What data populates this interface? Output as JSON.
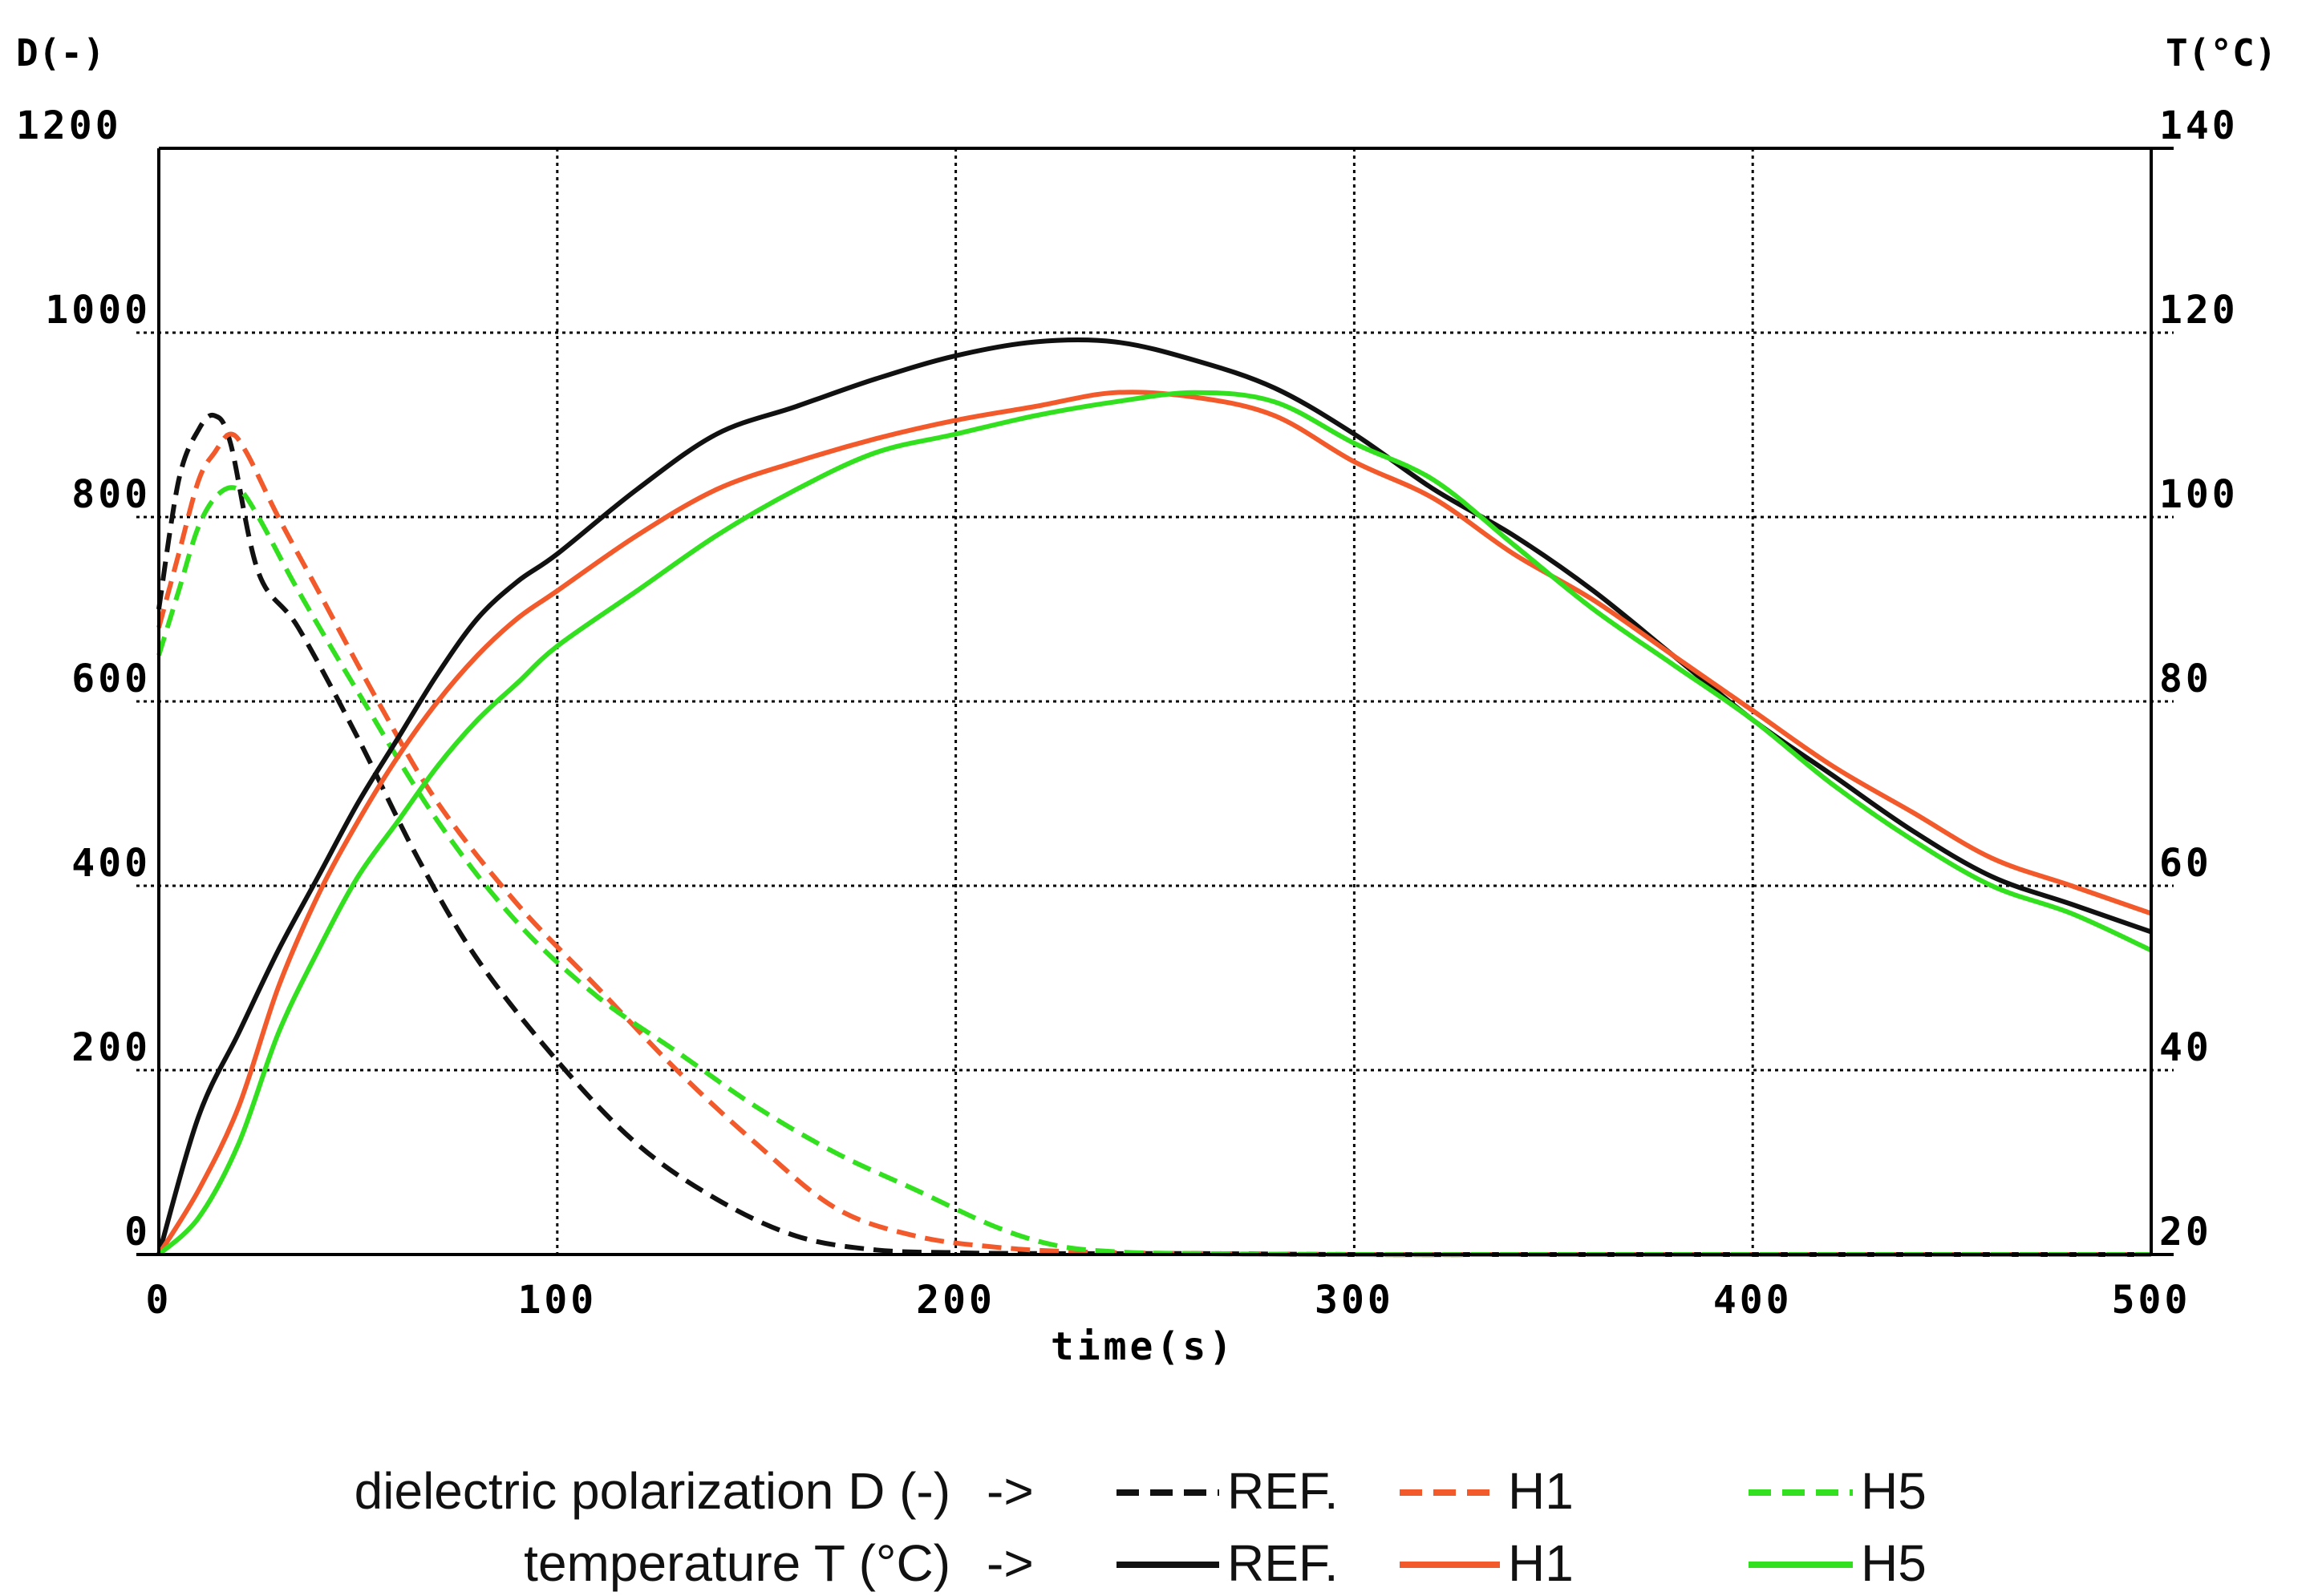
{
  "chart_data": {
    "type": "line",
    "title": "",
    "xlabel": "time(s)",
    "ylabel_left": "D(-)",
    "ylabel_right": "T(°C)",
    "xlim": [
      0,
      500
    ],
    "ylim_left": [
      0,
      1200
    ],
    "ylim_right": [
      20,
      140
    ],
    "x_ticks": [
      0,
      100,
      200,
      300,
      400,
      500
    ],
    "y_left_ticks": [
      0,
      200,
      400,
      600,
      800,
      1000,
      1200
    ],
    "y_right_ticks": [
      20,
      40,
      60,
      80,
      100,
      120,
      140
    ],
    "grid": true,
    "legend_position": "bottom-center",
    "legend": {
      "rows": [
        {
          "label": "dielectric polarization D (-)",
          "arrow": "->",
          "style": "dashed"
        },
        {
          "label": "temperature T (°C)",
          "arrow": "->",
          "style": "solid"
        }
      ],
      "entries": [
        "REF.",
        "H1",
        "H5"
      ]
    },
    "colors": {
      "REF.": "#111111",
      "H1": "#f25a2c",
      "H5": "#33e01f"
    },
    "series": [
      {
        "name": "REF.",
        "quantity": "D",
        "axis": "left",
        "style": "dashed",
        "x": [
          0,
          5,
          10,
          14,
          18,
          25,
          35,
          50,
          65,
          80,
          100,
          120,
          140,
          160,
          180,
          200,
          220,
          260,
          300,
          350,
          400,
          450,
          500
        ],
        "values": [
          700,
          840,
          895,
          910,
          880,
          740,
          680,
          560,
          430,
          320,
          210,
          120,
          60,
          20,
          5,
          2,
          1,
          1,
          0,
          0,
          0,
          0,
          0
        ]
      },
      {
        "name": "H1",
        "quantity": "D",
        "axis": "left",
        "style": "dashed",
        "x": [
          0,
          5,
          10,
          14,
          18,
          22,
          30,
          40,
          55,
          70,
          90,
          110,
          130,
          150,
          170,
          190,
          210,
          230,
          260,
          300,
          350,
          400,
          450,
          500
        ],
        "values": [
          680,
          760,
          840,
          870,
          890,
          870,
          800,
          720,
          600,
          490,
          380,
          290,
          200,
          120,
          50,
          20,
          8,
          3,
          1,
          0,
          0,
          0,
          0,
          0
        ]
      },
      {
        "name": "H5",
        "quantity": "D",
        "axis": "left",
        "style": "dashed",
        "x": [
          0,
          5,
          10,
          15,
          20,
          25,
          35,
          50,
          70,
          90,
          110,
          130,
          150,
          170,
          190,
          210,
          225,
          240,
          260,
          300,
          350,
          400,
          450,
          500
        ],
        "values": [
          650,
          720,
          790,
          825,
          830,
          800,
          720,
          610,
          470,
          360,
          280,
          220,
          160,
          110,
          70,
          30,
          10,
          3,
          1,
          0,
          0,
          0,
          0,
          0
        ]
      },
      {
        "name": "REF.",
        "quantity": "T",
        "axis": "right",
        "style": "solid",
        "x": [
          0,
          10,
          20,
          30,
          40,
          50,
          60,
          70,
          80,
          90,
          100,
          120,
          140,
          160,
          180,
          200,
          220,
          240,
          260,
          280,
          300,
          320,
          340,
          360,
          380,
          400,
          420,
          440,
          460,
          480,
          500
        ],
        "values": [
          20,
          35,
          44,
          53,
          61,
          69,
          76,
          83,
          89,
          93,
          96,
          103,
          109,
          112,
          115,
          117.5,
          119,
          119,
          117,
          114,
          109,
          103,
          98,
          92,
          85,
          78,
          72,
          66,
          61,
          58,
          55
        ]
      },
      {
        "name": "H1",
        "quantity": "T",
        "axis": "right",
        "style": "solid",
        "x": [
          0,
          10,
          20,
          30,
          40,
          50,
          60,
          70,
          80,
          90,
          100,
          120,
          140,
          160,
          180,
          200,
          220,
          240,
          260,
          280,
          300,
          320,
          340,
          360,
          380,
          400,
          420,
          440,
          460,
          480,
          500
        ],
        "values": [
          20,
          27,
          36,
          49,
          59,
          67,
          74,
          80,
          85,
          89,
          92,
          98,
          103,
          106,
          108.5,
          110.5,
          112,
          113.5,
          113,
          111,
          106,
          102,
          96,
          91,
          85,
          79,
          73,
          68,
          63,
          60,
          57
        ]
      },
      {
        "name": "H5",
        "quantity": "T",
        "axis": "right",
        "style": "solid",
        "x": [
          0,
          10,
          20,
          30,
          40,
          50,
          60,
          70,
          80,
          90,
          100,
          120,
          140,
          160,
          180,
          200,
          220,
          240,
          260,
          280,
          300,
          320,
          340,
          360,
          380,
          400,
          420,
          440,
          460,
          480,
          500
        ],
        "values": [
          20,
          24,
          32,
          44,
          53,
          61,
          67,
          73,
          78,
          82,
          86,
          92,
          98,
          103,
          107,
          109,
          111,
          112.5,
          113.5,
          112.5,
          108,
          104,
          97,
          90,
          84,
          78,
          71,
          65,
          60,
          57,
          53
        ]
      }
    ]
  }
}
